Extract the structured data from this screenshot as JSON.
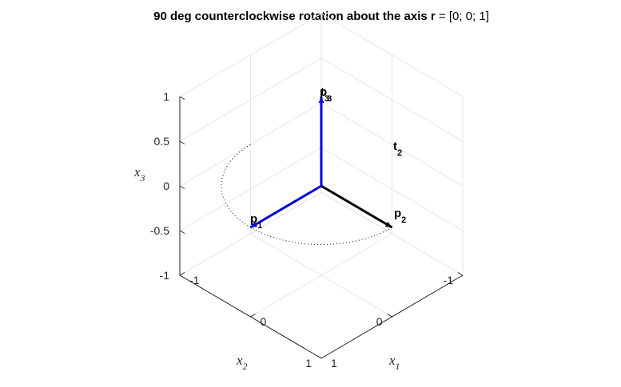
{
  "title": {
    "prefix": "90 deg counterclockwise rotation about the axis ",
    "bold_symbol": "r",
    "suffix": " = [0; 0; 1]"
  },
  "axes": {
    "x1": {
      "letter": "x",
      "sub": "1"
    },
    "x2": {
      "letter": "x",
      "sub": "2"
    },
    "x3": {
      "letter": "x",
      "sub": "3"
    }
  },
  "chart_data": {
    "type": "line",
    "view": "3d",
    "xlim": [
      -1,
      1
    ],
    "ylim": [
      -1,
      1
    ],
    "zlim": [
      -1,
      1
    ],
    "grid": true,
    "ticks": {
      "x1": [
        "-1",
        "0",
        "1"
      ],
      "x2": [
        "-1",
        "0",
        "1"
      ],
      "x3": [
        "-1",
        "-0.5",
        "0",
        "0.5",
        "1"
      ]
    },
    "vectors": [
      {
        "label": "p",
        "sub": "1",
        "from": [
          0,
          0,
          0
        ],
        "to": [
          1,
          0,
          0
        ],
        "color": "#000000"
      },
      {
        "label": "p",
        "sub": "2",
        "from": [
          0,
          0,
          0
        ],
        "to": [
          0,
          1,
          0
        ],
        "color": "#0000dd"
      },
      {
        "label": "p",
        "sub": "3",
        "from": [
          0,
          0,
          0
        ],
        "to": [
          0,
          0,
          1
        ],
        "color": "#0000dd"
      }
    ],
    "vector_labels": [
      {
        "label": "p",
        "sub": "1",
        "at": [
          1,
          0,
          0
        ]
      },
      {
        "label": "p",
        "sub": "2",
        "at": [
          0,
          1,
          0
        ]
      },
      {
        "label": "t",
        "sub": "2",
        "at": [
          -1,
          0,
          0
        ]
      },
      {
        "label": "p",
        "sub": "3",
        "at": [
          0,
          0,
          1
        ]
      },
      {
        "label": "t",
        "sub": "3",
        "at": [
          0,
          0,
          1
        ]
      }
    ],
    "arc": {
      "from_angle_deg": 0,
      "to_angle_deg": 180,
      "radius": 1,
      "z": 0,
      "style": "dotted",
      "color": "#000000"
    }
  }
}
